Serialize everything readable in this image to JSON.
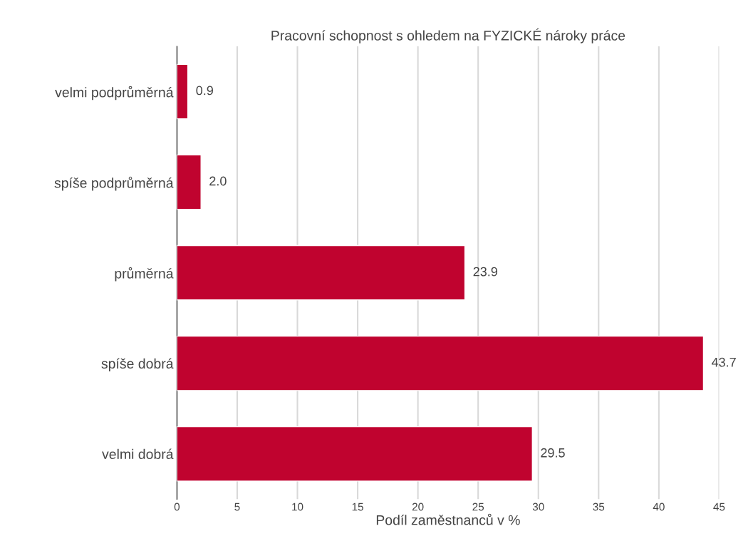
{
  "chart_data": {
    "type": "bar",
    "orientation": "horizontal",
    "title": "Pracovní schopnost s ohledem na FYZICKÉ nároky práce",
    "xlabel": "Podíl zaměstnanců v %",
    "categories": [
      "velmi podprůměrná",
      "spíše podprůměrná",
      "průměrná",
      "spíše dobrá",
      "velmi dobrá"
    ],
    "values": [
      0.9,
      2.0,
      23.9,
      43.7,
      29.5
    ],
    "value_labels": [
      "0.9",
      "2.0",
      "23.9",
      "43.7",
      "29.5"
    ],
    "color": "#c0032f",
    "xlim": [
      0,
      45
    ],
    "xticks": [
      0,
      5,
      10,
      15,
      20,
      25,
      30,
      35,
      40,
      45
    ],
    "grid": "x",
    "legend": false
  }
}
